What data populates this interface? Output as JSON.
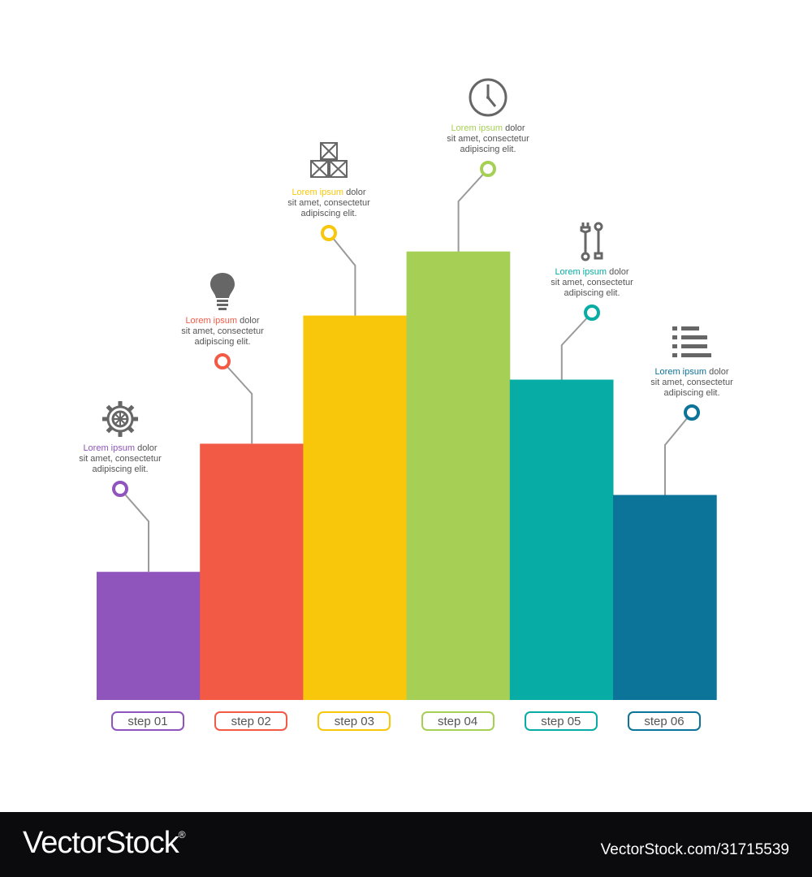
{
  "chart_data": {
    "type": "bar",
    "categories": [
      "step 01",
      "step 02",
      "step 03",
      "step 04",
      "step 05",
      "step 06"
    ],
    "values": [
      2,
      4,
      6,
      7,
      5,
      3.2
    ],
    "colors": [
      "#8f55bd",
      "#f25a46",
      "#f8c70b",
      "#a6d055",
      "#07aca5",
      "#0c7399"
    ],
    "title": "",
    "xlabel": "",
    "ylabel": "",
    "grid": false,
    "legend": "none"
  },
  "callouts": [
    {
      "highlight": "Lorem ipsum",
      "line1_rest": " dolor",
      "line2": "sit amet, consectetur",
      "line3": "adipiscing elit.",
      "icon": "gear-icon"
    },
    {
      "highlight": "Lorem ipsum",
      "line1_rest": " dolor",
      "line2": "sit amet, consectetur",
      "line3": "adipiscing elit.",
      "icon": "lightbulb-icon"
    },
    {
      "highlight": "Lorem ipsum",
      "line1_rest": " dolor",
      "line2": "sit amet, consectetur",
      "line3": "adipiscing elit.",
      "icon": "boxes-icon"
    },
    {
      "highlight": "Lorem ipsum",
      "line1_rest": " dolor",
      "line2": "sit amet, consectetur",
      "line3": "adipiscing elit.",
      "icon": "clock-icon"
    },
    {
      "highlight": "Lorem ipsum",
      "line1_rest": " dolor",
      "line2": "sit amet, consectetur",
      "line3": "adipiscing elit.",
      "icon": "wrench-icon"
    },
    {
      "highlight": "Lorem ipsum",
      "line1_rest": " dolor",
      "line2": "sit amet, consectetur",
      "line3": "adipiscing elit.",
      "icon": "list-icon"
    }
  ],
  "footer": {
    "brand": "VectorStock",
    "registered": "®",
    "image_id": "VectorStock.com/31715539"
  }
}
